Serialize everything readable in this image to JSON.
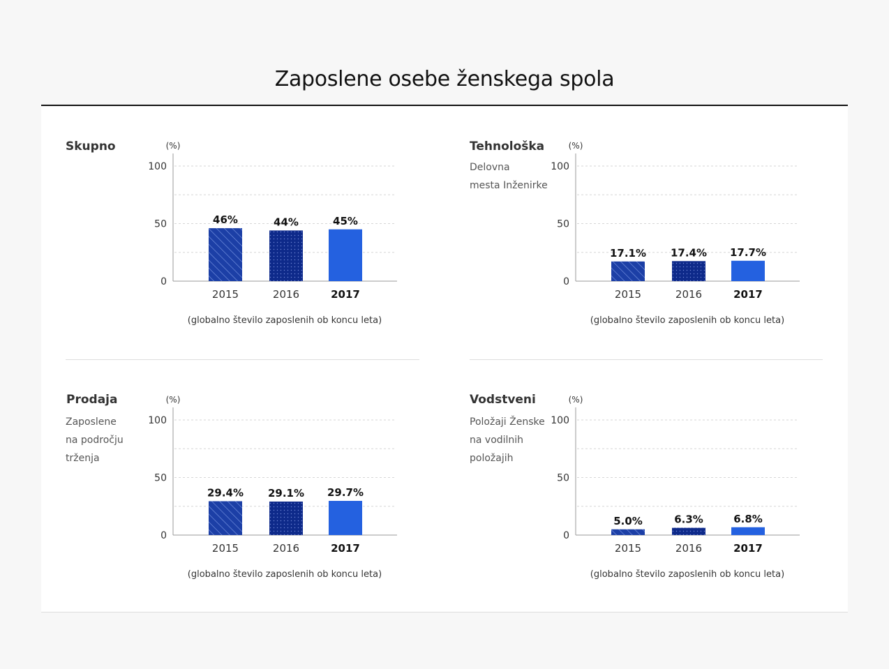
{
  "title": "Zaposlene osebe ženskega spola",
  "colors": {
    "pattern_a": "#1c3fa6",
    "pattern_b": "#0e2a8a",
    "solid": "#2461e0",
    "grid": "#d6d6d6",
    "axis": "#999999"
  },
  "chart_data": [
    {
      "type": "bar",
      "title": "Skupno",
      "subtitle": [],
      "unit_label": "(%)",
      "categories": [
        "2015",
        "2016",
        "2017"
      ],
      "values": [
        46,
        44,
        45
      ],
      "value_labels": [
        "46%",
        "44%",
        "45%"
      ],
      "ylim": [
        0,
        100
      ],
      "yticks": [
        "0",
        "50",
        "100"
      ],
      "grid": true,
      "note": "(globalno število zaposlenih ob koncu leta)"
    },
    {
      "type": "bar",
      "title": "Tehnološka",
      "subtitle": [
        "Delovna",
        "mesta Inženirke"
      ],
      "unit_label": "(%)",
      "categories": [
        "2015",
        "2016",
        "2017"
      ],
      "values": [
        17.1,
        17.4,
        17.7
      ],
      "value_labels": [
        "17.1%",
        "17.4%",
        "17.7%"
      ],
      "ylim": [
        0,
        100
      ],
      "yticks": [
        "0",
        "50",
        "100"
      ],
      "grid": true,
      "note": "(globalno število zaposlenih ob koncu leta)"
    },
    {
      "type": "bar",
      "title": "Prodaja",
      "subtitle": [
        "Zaposlene",
        "na področju",
        "trženja"
      ],
      "unit_label": "(%)",
      "categories": [
        "2015",
        "2016",
        "2017"
      ],
      "values": [
        29.4,
        29.1,
        29.7
      ],
      "value_labels": [
        "29.4%",
        "29.1%",
        "29.7%"
      ],
      "ylim": [
        0,
        100
      ],
      "yticks": [
        "0",
        "50",
        "100"
      ],
      "grid": true,
      "note": "(globalno število zaposlenih ob koncu leta)"
    },
    {
      "type": "bar",
      "title": "Vodstveni",
      "subtitle": [
        "Položaji Ženske",
        "na vodilnih",
        "položajih"
      ],
      "unit_label": "(%)",
      "categories": [
        "2015",
        "2016",
        "2017"
      ],
      "values": [
        5.0,
        6.3,
        6.8
      ],
      "value_labels": [
        "5.0%",
        "6.3%",
        "6.8%"
      ],
      "ylim": [
        0,
        100
      ],
      "yticks": [
        "0",
        "50",
        "100"
      ],
      "grid": true,
      "note": "(globalno število zaposlenih ob koncu leta)"
    }
  ]
}
